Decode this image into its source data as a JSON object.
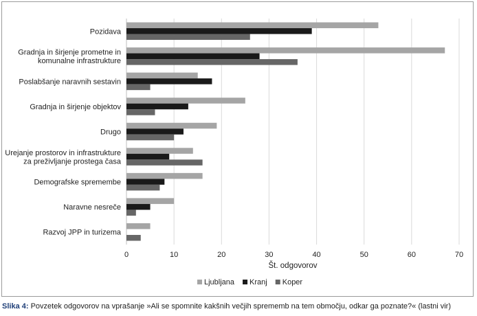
{
  "chart_data": {
    "type": "bar",
    "orientation": "horizontal",
    "categories": [
      [
        "Pozidava"
      ],
      [
        "Gradnja in širjenje prometne in",
        "komunalne infrastrukture"
      ],
      [
        "Poslabšanje naravnih sestavin"
      ],
      [
        "Gradnja in širjenje objektov"
      ],
      [
        "Drugo"
      ],
      [
        "Urejanje prostorov in infrastrukture",
        "za preživljanje prostega časa"
      ],
      [
        "Demografske spremembe"
      ],
      [
        "Naravne nesreče"
      ],
      [
        "Razvoj JPP in turizema"
      ]
    ],
    "series": [
      {
        "name": "Ljubljana",
        "color": "#a5a5a5",
        "values": [
          53,
          67,
          15,
          25,
          19,
          14,
          16,
          10,
          5
        ]
      },
      {
        "name": "Kranj",
        "color": "#1a1a1a",
        "values": [
          39,
          28,
          18,
          13,
          12,
          9,
          8,
          5,
          0
        ]
      },
      {
        "name": "Koper",
        "color": "#666666",
        "values": [
          26,
          36,
          5,
          6,
          10,
          16,
          7,
          2,
          3
        ]
      }
    ],
    "xlabel": "Št. odgovorov",
    "xlim": [
      0,
      70
    ],
    "xticks": [
      0,
      10,
      20,
      30,
      40,
      50,
      60,
      70
    ],
    "grid": "vertical",
    "legend_position": "bottom"
  },
  "caption": {
    "label": "Slika 4:",
    "text": " Povzetek odgovorov na vprašanje »Ali se spomnite kakšnih večjih sprememb na tem območju, odkar ga poznate?« (lastni vir)"
  }
}
